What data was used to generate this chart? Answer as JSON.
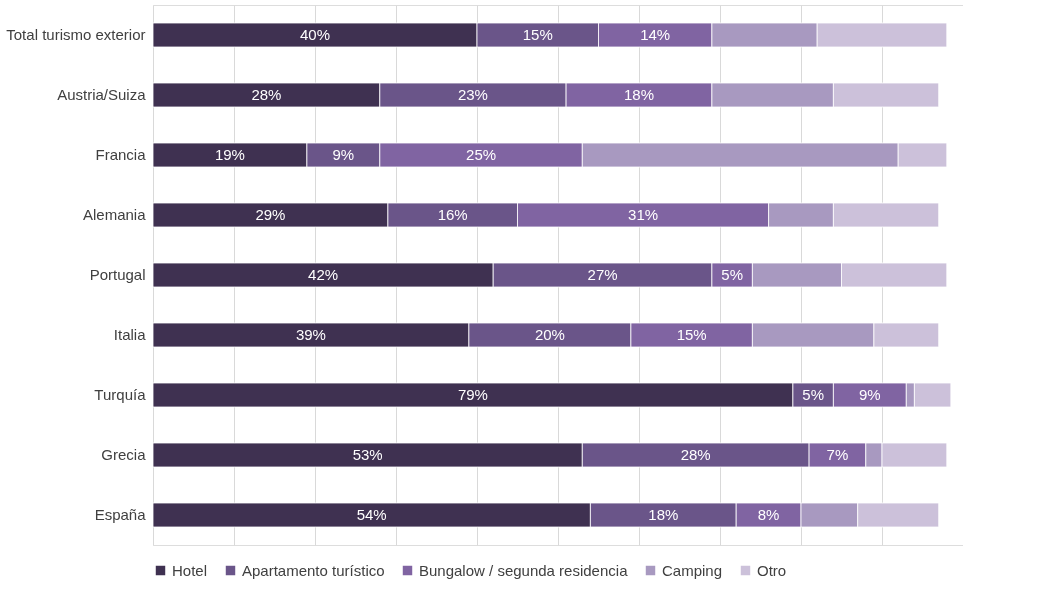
{
  "chart_data": {
    "type": "bar",
    "orientation": "horizontal",
    "stacked": true,
    "categories": [
      "Total turismo exterior",
      "Austria/Suiza",
      "Francia",
      "Alemania",
      "Portugal",
      "Italia",
      "Turquía",
      "Grecia",
      "España"
    ],
    "series": [
      {
        "name": "Hotel",
        "color": "#3f3151",
        "values": [
          40,
          28,
          19,
          29,
          42,
          39,
          79,
          53,
          54
        ],
        "value_labels": [
          "40%",
          "28%",
          "19%",
          "29%",
          "42%",
          "39%",
          "79%",
          "53%",
          "54%"
        ]
      },
      {
        "name": "Apartamento turístico",
        "color": "#6a5589",
        "values": [
          15,
          23,
          9,
          16,
          27,
          20,
          5,
          28,
          18
        ],
        "value_labels": [
          "15%",
          "23%",
          "9%",
          "16%",
          "27%",
          "20%",
          "5%",
          "28%",
          "18%"
        ]
      },
      {
        "name": "Bungalow / segunda residencia",
        "color": "#8064a2",
        "values": [
          14,
          18,
          25,
          31,
          5,
          15,
          9,
          7,
          8
        ],
        "value_labels": [
          "14%",
          "18%",
          "25%",
          "31%",
          "5%",
          "15%",
          "9%",
          "7%",
          "8%"
        ]
      },
      {
        "name": "Camping",
        "color": "#a899c0",
        "values": [
          13,
          15,
          39,
          8,
          11,
          15,
          1,
          2,
          7
        ]
      },
      {
        "name": "Otro",
        "color": "#ccc1da",
        "values": [
          16,
          13,
          6,
          13,
          13,
          8,
          4.5,
          8,
          10
        ]
      }
    ],
    "xlim": [
      0,
      100
    ],
    "xticks": [
      {
        "value": 0,
        "label": null
      },
      {
        "value": 10,
        "label": null
      },
      {
        "value": 20,
        "label": null
      },
      {
        "value": 30,
        "label": null
      },
      {
        "value": 40,
        "label": null
      },
      {
        "value": 50,
        "label": null
      },
      {
        "value": 60,
        "label": null
      },
      {
        "value": 70,
        "label": null
      },
      {
        "value": 80,
        "label": null
      },
      {
        "value": 90,
        "label": null
      },
      {
        "value": 100,
        "label": null
      }
    ],
    "tick_labels": "y",
    "grid": "x",
    "legend": "bottom"
  }
}
